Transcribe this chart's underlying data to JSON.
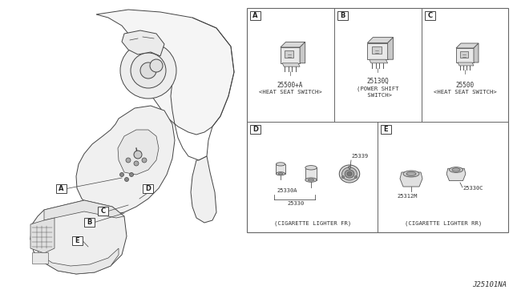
{
  "bg_color": "#ffffff",
  "diagram_code": "J25101NA",
  "text_color": "#333333",
  "part_numbers": {
    "A": "25500+A",
    "B": "25130Q",
    "C": "25500",
    "D_top": "25339",
    "D_left": "25330A",
    "D_center": "25330",
    "E_left": "25312M",
    "E_right": "25330C"
  },
  "captions": {
    "A": "<HEAT SEAT SWITCH>",
    "B1": "(POWER SHIFT",
    "B2": " SWITCH>",
    "C": "<HEAT SEAT SWITCH>",
    "D": "(CIGARETTE LIGHTER FR)",
    "E": "(CIGARETTE LIGHTER RR)"
  }
}
